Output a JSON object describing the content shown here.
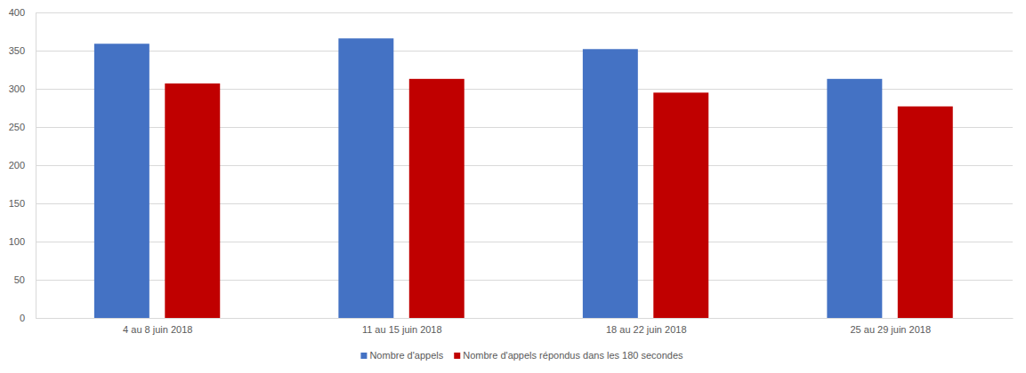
{
  "chart_data": {
    "type": "bar",
    "categories": [
      "4 au 8 juin 2018",
      "11 au 15 juin 2018",
      "18 au 22 juin 2018",
      "25 au 29 juin 2018"
    ],
    "series": [
      {
        "name": "Nombre d'appels",
        "color": "#4472c4",
        "values": [
          359,
          366,
          352,
          313
        ]
      },
      {
        "name": "Nombre d'appels répondus dans les 180 secondes",
        "color": "#c00000",
        "values": [
          307,
          313,
          295,
          277
        ]
      }
    ],
    "ylim": [
      0,
      400
    ],
    "yticks": [
      0,
      50,
      100,
      150,
      200,
      250,
      300,
      350,
      400
    ],
    "grid": true,
    "legend": "bottom"
  }
}
